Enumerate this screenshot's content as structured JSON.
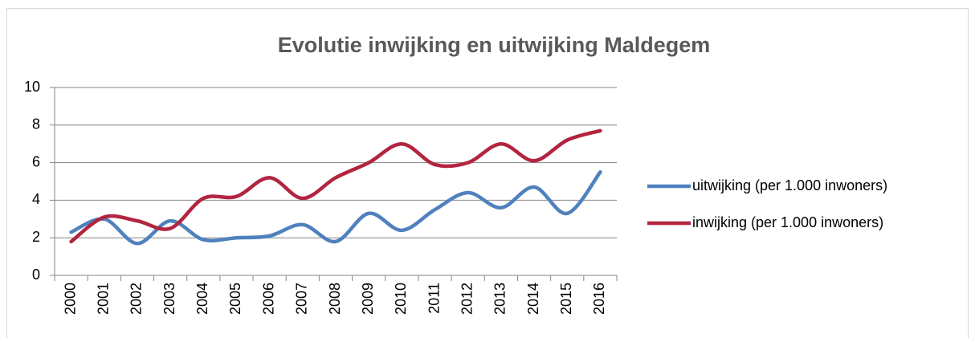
{
  "chart_data": {
    "type": "line",
    "title": "Evolutie inwijking en uitwijking Maldegem",
    "categories": [
      "2000",
      "2001",
      "2002",
      "2003",
      "2004",
      "2005",
      "2006",
      "2007",
      "2008",
      "2009",
      "2010",
      "2011",
      "2012",
      "2013",
      "2014",
      "2015",
      "2016"
    ],
    "series": [
      {
        "name": "uitwijking (per 1.000 inwoners)",
        "color": "#4f81bd",
        "values": [
          2.3,
          3.0,
          1.7,
          2.9,
          1.9,
          2.0,
          2.1,
          2.7,
          1.8,
          3.3,
          2.4,
          3.5,
          4.4,
          3.6,
          4.7,
          3.3,
          5.5
        ]
      },
      {
        "name": "inwijking (per 1.000 inwoners)",
        "color": "#b2243f",
        "values": [
          1.8,
          3.1,
          2.9,
          2.5,
          4.1,
          4.2,
          5.2,
          4.1,
          5.2,
          6.0,
          7.0,
          5.9,
          6.0,
          7.0,
          6.1,
          7.2,
          7.7
        ]
      }
    ],
    "ylim": [
      0,
      10
    ],
    "yticks": [
      0,
      2,
      4,
      6,
      8,
      10
    ],
    "grid": true,
    "legend": "right",
    "smooth": true
  }
}
